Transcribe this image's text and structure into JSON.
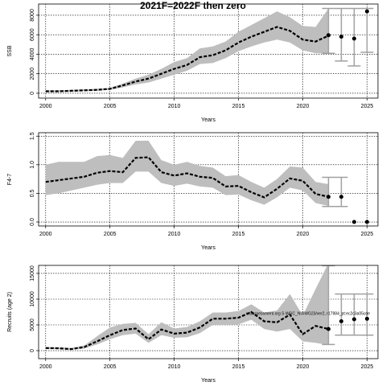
{
  "chart_data": [
    {
      "type": "line",
      "title": "2021F=2022F then zero",
      "xlabel": "Years",
      "ylabel": "SSB",
      "x": [
        2000,
        2001,
        2002,
        2003,
        2004,
        2005,
        2006,
        2007,
        2008,
        2009,
        2010,
        2011,
        2012,
        2013,
        2014,
        2015,
        2016,
        2017,
        2018,
        2019,
        2020,
        2021,
        2022
      ],
      "values": [
        200,
        200,
        250,
        300,
        350,
        450,
        800,
        1200,
        1500,
        2000,
        2500,
        2900,
        3700,
        3900,
        4400,
        5200,
        5800,
        6300,
        6800,
        6400,
        5500,
        5300,
        5900
      ],
      "upper": [
        300,
        300,
        350,
        400,
        450,
        550,
        1000,
        1500,
        1900,
        2500,
        3200,
        3600,
        4600,
        4800,
        5300,
        6300,
        7000,
        7700,
        8400,
        7800,
        6900,
        6800,
        8700
      ],
      "lower": [
        100,
        100,
        150,
        200,
        250,
        350,
        600,
        900,
        1100,
        1500,
        1900,
        2300,
        3000,
        3100,
        3600,
        4300,
        4800,
        5200,
        5500,
        5200,
        4400,
        4100,
        4100
      ],
      "proj_x": [
        2022,
        2023,
        2024,
        2025
      ],
      "proj_values": [
        5950,
        5800,
        5600,
        8400
      ],
      "proj_low": [
        4100,
        3300,
        2800,
        4200
      ],
      "proj_high": [
        8700,
        8700,
        8700,
        8700
      ],
      "color": "#000000",
      "band_color": "#bebebe",
      "error_color": "#a0a0a0",
      "xlim": [
        1999.45,
        2025.85
      ],
      "xticks": [
        2000,
        2005,
        2010,
        2015,
        2020,
        2025
      ],
      "ylim": [
        -500,
        9150
      ],
      "yticks": [
        0,
        2000,
        4000,
        6000,
        8000
      ],
      "grid": true
    },
    {
      "type": "line",
      "xlabel": "Years",
      "ylabel": "F4-7",
      "x": [
        2000,
        2001,
        2002,
        2003,
        2004,
        2005,
        2006,
        2007,
        2008,
        2009,
        2010,
        2011,
        2012,
        2013,
        2014,
        2015,
        2016,
        2017,
        2018,
        2019,
        2020,
        2021,
        2022
      ],
      "values": [
        0.7,
        0.73,
        0.76,
        0.79,
        0.86,
        0.89,
        0.87,
        1.12,
        1.13,
        0.87,
        0.81,
        0.85,
        0.79,
        0.77,
        0.62,
        0.63,
        0.52,
        0.43,
        0.58,
        0.76,
        0.72,
        0.49,
        0.44
      ],
      "upper": [
        1.0,
        1.05,
        1.05,
        1.05,
        1.15,
        1.17,
        1.12,
        1.42,
        1.42,
        1.08,
        1.0,
        1.05,
        0.98,
        0.95,
        0.8,
        0.82,
        0.7,
        0.6,
        0.75,
        0.97,
        0.95,
        0.7,
        0.66
      ],
      "lower": [
        0.47,
        0.5,
        0.55,
        0.6,
        0.65,
        0.68,
        0.68,
        0.88,
        0.88,
        0.68,
        0.63,
        0.67,
        0.62,
        0.6,
        0.47,
        0.48,
        0.38,
        0.3,
        0.43,
        0.6,
        0.55,
        0.33,
        0.28
      ],
      "proj_x": [
        2022,
        2023,
        2024,
        2025
      ],
      "proj_values": [
        0.44,
        0.44,
        0,
        0
      ],
      "proj_low": [
        0.27,
        0.27,
        null,
        null
      ],
      "proj_high": [
        0.78,
        0.78,
        null,
        null
      ],
      "color": "#000000",
      "band_color": "#bebebe",
      "error_color": "#a0a0a0",
      "xlim": [
        1999.45,
        2025.85
      ],
      "xticks": [
        2000,
        2005,
        2010,
        2015,
        2020,
        2025
      ],
      "ylim": [
        -0.07,
        1.56
      ],
      "yticks": [
        {
          "value": 0,
          "label": "0.0"
        },
        0.5,
        {
          "value": 1,
          "label": "1.0"
        },
        1.5
      ],
      "grid": true
    },
    {
      "type": "line",
      "xlabel": "Years",
      "ylabel": "Recruits (age 2)",
      "annotation": "wtsassessment.org S WGC_NWWG23/ver2, r17984_pt:ec2c3a05cde",
      "x": [
        2000,
        2001,
        2002,
        2003,
        2004,
        2005,
        2006,
        2007,
        2008,
        2009,
        2010,
        2011,
        2012,
        2013,
        2014,
        2015,
        2016,
        2017,
        2018,
        2019,
        2020,
        2021,
        2022
      ],
      "values": [
        500,
        450,
        300,
        700,
        1800,
        3000,
        4000,
        4300,
        2200,
        4100,
        3300,
        3500,
        4500,
        6200,
        6200,
        6400,
        7500,
        5700,
        5500,
        7000,
        3200,
        4800,
        4200
      ],
      "upper": [
        700,
        650,
        500,
        1000,
        2800,
        4500,
        5200,
        5400,
        3200,
        5500,
        4300,
        4600,
        5700,
        7400,
        7400,
        7700,
        9000,
        7400,
        7800,
        11000,
        6800,
        12000,
        17000
      ],
      "lower": [
        300,
        300,
        200,
        400,
        1200,
        2200,
        3000,
        3300,
        1500,
        3000,
        2500,
        2600,
        3400,
        5000,
        5000,
        5100,
        6000,
        4200,
        3700,
        4200,
        1800,
        1500,
        1100
      ],
      "proj_x": [
        2022,
        2023,
        2024,
        2025
      ],
      "proj_values": [
        4200,
        5700,
        6100,
        6200
      ],
      "proj_low": [
        1200,
        3000,
        3000,
        3000
      ],
      "proj_high": [
        16500,
        11000,
        11000,
        11000
      ],
      "color": "#000000",
      "band_color": "#bebebe",
      "error_color": "#a0a0a0",
      "xlim": [
        1999.45,
        2025.85
      ],
      "xticks": [
        2000,
        2005,
        2010,
        2015,
        2020,
        2025
      ],
      "ylim": [
        -1560,
        16560
      ],
      "yticks": [
        0,
        5000,
        10000,
        15000
      ],
      "grid": true
    }
  ]
}
